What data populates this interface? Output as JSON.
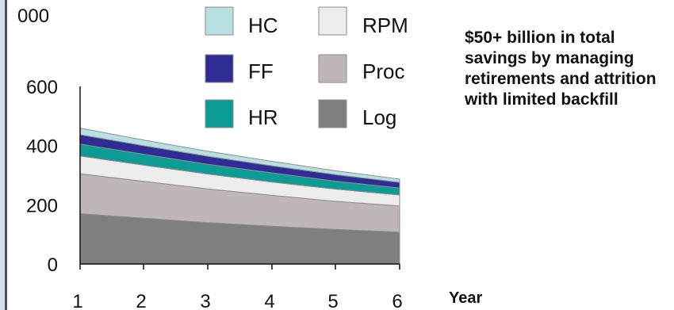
{
  "chart_data": {
    "type": "area",
    "stacked": true,
    "x": [
      1,
      2,
      3,
      4,
      5,
      6
    ],
    "xlabel": "Year",
    "ylabel": "",
    "ylim": [
      0,
      600
    ],
    "y_ticks": [
      0,
      200,
      400,
      600
    ],
    "y_top_label_fragment": "000",
    "grid": false,
    "legend": "top",
    "series": [
      {
        "name": "Log",
        "color": "#7f7f7f",
        "values": [
          170,
          155,
          140,
          128,
          117,
          108
        ]
      },
      {
        "name": "Proc",
        "color": "#bfb7b7",
        "values": [
          135,
          124,
          114,
          104,
          95,
          88
        ]
      },
      {
        "name": "RPM",
        "color": "#ededed",
        "values": [
          60,
          55,
          50,
          45,
          41,
          37
        ]
      },
      {
        "name": "HR",
        "color": "#0d9b95",
        "values": [
          40,
          37,
          33,
          31,
          27,
          24
        ]
      },
      {
        "name": "FF",
        "color": "#2f2d94",
        "values": [
          32,
          29,
          27,
          24,
          22,
          19
        ]
      },
      {
        "name": "HC",
        "color": "#b8e0e2",
        "values": [
          22,
          19,
          17,
          15,
          13,
          11
        ]
      }
    ]
  },
  "legend_items": [
    {
      "name": "HC",
      "color": "#b8e0e2"
    },
    {
      "name": "FF",
      "color": "#2f2d94"
    },
    {
      "name": "HR",
      "color": "#0d9b95"
    },
    {
      "name": "RPM",
      "color": "#ededed"
    },
    {
      "name": "Proc",
      "color": "#bfb7b7"
    },
    {
      "name": "Log",
      "color": "#7f7f7f"
    }
  ],
  "callout_text": "$50+ billion in total savings by managing retirements and attrition with limited backfill"
}
